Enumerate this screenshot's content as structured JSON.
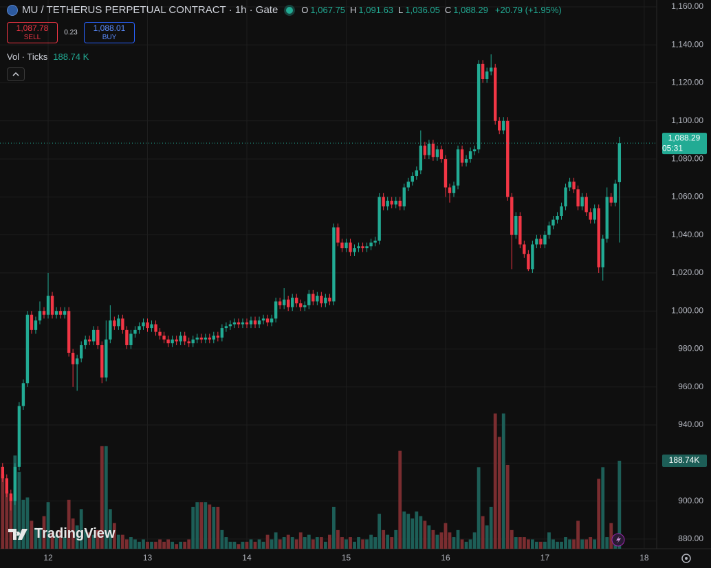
{
  "header": {
    "symbol": "MU / TETHERUS PERPETUAL CONTRACT · 1h · Gate",
    "ohlc": [
      {
        "key": "O",
        "value": "1,067.75"
      },
      {
        "key": "H",
        "value": "1,091.63"
      },
      {
        "key": "L",
        "value": "1,036.05"
      },
      {
        "key": "C",
        "value": "1,088.29"
      }
    ],
    "change": "+20.79 (+1.95%)",
    "sell_price": "1,087.78",
    "sell": "SELL",
    "spread": "0.23",
    "buy_price": "1,088.01",
    "buy": "BUY",
    "volume_title": "Vol · Ticks",
    "volume_value": "188.74 K",
    "brand": "TradingView"
  },
  "chart_data": {
    "type": "candlestick",
    "up_color": "#22ab94",
    "down_color": "#f23645",
    "volume_up_color": "#1d5e57",
    "volume_down_color": "#7a2d30",
    "grid": true,
    "xlim": [
      -0.63,
      158
    ],
    "xticks": [
      {
        "value": 11,
        "label": "12"
      },
      {
        "value": 35,
        "label": "13"
      },
      {
        "value": 59,
        "label": "14"
      },
      {
        "value": 83,
        "label": "15"
      },
      {
        "value": 107,
        "label": "16"
      },
      {
        "value": 131,
        "label": "17"
      },
      {
        "value": 155,
        "label": "18"
      }
    ],
    "ylim": [
      874.9,
      1163.6
    ],
    "yticks": [
      {
        "value": 880,
        "label": "880.00"
      },
      {
        "value": 900,
        "label": "900.00"
      },
      {
        "value": 920,
        "label": "920.00"
      },
      {
        "value": 940,
        "label": "940.00"
      },
      {
        "value": 960,
        "label": "960.00"
      },
      {
        "value": 980,
        "label": "980.00"
      },
      {
        "value": 1000,
        "label": "1,000.00"
      },
      {
        "value": 1020,
        "label": "1,020.00"
      },
      {
        "value": 1040,
        "label": "1,040.00"
      },
      {
        "value": 1060,
        "label": "1,060.00"
      },
      {
        "value": 1080,
        "label": "1,080.00"
      },
      {
        "value": 1100,
        "label": "1,100.00"
      },
      {
        "value": 1120,
        "label": "1,120.00"
      },
      {
        "value": 1140,
        "label": "1,140.00"
      },
      {
        "value": 1160,
        "label": "1,160.00"
      }
    ],
    "open": [
      918,
      912,
      904,
      900,
      918,
      950,
      962,
      998,
      990,
      995,
      1000,
      998,
      1008,
      998,
      1000,
      998,
      1000,
      978,
      972,
      975,
      982,
      985,
      984,
      990,
      982,
      965,
      985,
      995,
      992,
      996,
      990,
      982,
      988,
      990,
      992,
      994,
      991,
      993,
      989,
      987,
      985,
      983,
      985,
      984,
      987,
      984,
      983,
      985,
      986,
      985,
      986,
      985,
      987,
      986,
      991,
      992,
      993,
      994,
      993,
      994,
      993,
      995,
      993,
      995,
      996,
      994,
      996,
      1005,
      1003,
      1006,
      1002,
      1007,
      1004,
      1002,
      1003,
      1009,
      1005,
      1008,
      1004,
      1007,
      1005,
      1044,
      1036,
      1033,
      1036,
      1031,
      1033,
      1034,
      1033,
      1034,
      1036,
      1037,
      1060,
      1055,
      1058,
      1056,
      1058,
      1055,
      1065,
      1068,
      1071,
      1074,
      1087,
      1082,
      1088,
      1081,
      1085,
      1080,
      1065,
      1062,
      1066,
      1085,
      1078,
      1080,
      1084,
      1085,
      1130,
      1122,
      1126,
      1128,
      1100,
      1095,
      1100,
      1060,
      1040,
      1050,
      1035,
      1030,
      1022,
      1035,
      1038,
      1035,
      1040,
      1045,
      1048,
      1050,
      1055,
      1065,
      1068,
      1064,
      1055,
      1060,
      1052,
      1048,
      1054,
      1023,
      1038,
      1060,
      1057,
      1067.75
    ],
    "high": [
      920,
      914,
      906,
      920,
      952,
      964,
      1000,
      1000,
      997,
      1005,
      1002,
      1020,
      1010,
      1002,
      1002,
      1002,
      1002,
      980,
      977,
      984,
      987,
      987,
      992,
      992,
      984,
      995,
      1003,
      997,
      998,
      998,
      992,
      990,
      992,
      994,
      996,
      996,
      995,
      995,
      991,
      989,
      987,
      987,
      987,
      989,
      989,
      986,
      987,
      988,
      988,
      988,
      988,
      989,
      989,
      993,
      994,
      995,
      996,
      996,
      996,
      996,
      997,
      997,
      997,
      998,
      998,
      998,
      1007,
      1007,
      1012,
      1008,
      1009,
      1009,
      1006,
      1005,
      1011,
      1011,
      1010,
      1010,
      1009,
      1009,
      1046,
      1046,
      1038,
      1038,
      1038,
      1035,
      1036,
      1036,
      1036,
      1038,
      1039,
      1062,
      1062,
      1060,
      1060,
      1060,
      1060,
      1067,
      1070,
      1073,
      1076,
      1095,
      1089,
      1090,
      1090,
      1087,
      1087,
      1082,
      1067,
      1068,
      1087,
      1087,
      1082,
      1086,
      1087,
      1132,
      1132,
      1128,
      1135,
      1130,
      1102,
      1102,
      1102,
      1062,
      1052,
      1052,
      1037,
      1032,
      1037,
      1040,
      1040,
      1042,
      1047,
      1050,
      1052,
      1057,
      1067,
      1070,
      1070,
      1066,
      1062,
      1062,
      1054,
      1056,
      1056,
      1040,
      1065,
      1062,
      1069,
      1091.63
    ],
    "low": [
      910,
      902,
      895,
      898,
      916,
      948,
      960,
      988,
      988,
      993,
      996,
      996,
      996,
      996,
      996,
      996,
      976,
      960,
      958,
      973,
      980,
      982,
      982,
      980,
      962,
      963,
      983,
      990,
      990,
      988,
      980,
      980,
      986,
      988,
      990,
      989,
      989,
      987,
      985,
      983,
      981,
      981,
      982,
      982,
      982,
      981,
      981,
      983,
      983,
      983,
      983,
      983,
      984,
      984,
      989,
      990,
      991,
      991,
      991,
      991,
      991,
      991,
      991,
      993,
      992,
      992,
      994,
      1001,
      1001,
      1000,
      1000,
      1002,
      1000,
      1000,
      1001,
      1003,
      1003,
      1002,
      1002,
      1003,
      1003,
      1034,
      1031,
      1031,
      1029,
      1029,
      1031,
      1031,
      1031,
      1032,
      1034,
      1035,
      1053,
      1053,
      1054,
      1054,
      1053,
      1053,
      1063,
      1066,
      1069,
      1072,
      1080,
      1080,
      1079,
      1079,
      1078,
      1060,
      1057,
      1060,
      1064,
      1076,
      1076,
      1078,
      1082,
      1083,
      1120,
      1120,
      1124,
      1098,
      1093,
      1093,
      1058,
      1022,
      1038,
      1033,
      1028,
      1021,
      1020,
      1033,
      1033,
      1033,
      1038,
      1043,
      1046,
      1048,
      1053,
      1063,
      1062,
      1053,
      1053,
      1050,
      1046,
      1046,
      1020,
      1016,
      1036,
      1055,
      1055,
      1036.05
    ],
    "close": [
      912,
      904,
      900,
      918,
      950,
      962,
      998,
      990,
      995,
      1000,
      998,
      1008,
      998,
      1000,
      998,
      1000,
      978,
      972,
      975,
      982,
      985,
      984,
      990,
      982,
      965,
      985,
      995,
      992,
      996,
      990,
      982,
      988,
      990,
      992,
      994,
      991,
      993,
      989,
      987,
      985,
      983,
      985,
      984,
      987,
      984,
      983,
      985,
      986,
      985,
      986,
      985,
      987,
      986,
      991,
      992,
      993,
      994,
      993,
      994,
      993,
      995,
      993,
      995,
      996,
      994,
      996,
      1005,
      1003,
      1006,
      1002,
      1007,
      1004,
      1002,
      1003,
      1009,
      1005,
      1008,
      1004,
      1007,
      1005,
      1044,
      1036,
      1033,
      1036,
      1031,
      1033,
      1034,
      1033,
      1034,
      1036,
      1037,
      1060,
      1055,
      1058,
      1056,
      1058,
      1055,
      1065,
      1068,
      1071,
      1074,
      1087,
      1082,
      1088,
      1081,
      1085,
      1080,
      1065,
      1062,
      1066,
      1085,
      1078,
      1080,
      1084,
      1085,
      1130,
      1122,
      1126,
      1128,
      1100,
      1095,
      1100,
      1060,
      1040,
      1050,
      1035,
      1030,
      1022,
      1035,
      1038,
      1035,
      1040,
      1045,
      1048,
      1050,
      1055,
      1065,
      1068,
      1064,
      1055,
      1060,
      1052,
      1048,
      1054,
      1023,
      1038,
      1060,
      1057,
      1067,
      1088.29
    ],
    "volume": [
      160,
      125,
      110,
      200,
      165,
      105,
      110,
      60,
      45,
      45,
      70,
      100,
      35,
      30,
      40,
      25,
      105,
      65,
      50,
      85,
      40,
      35,
      30,
      40,
      220,
      220,
      85,
      55,
      30,
      30,
      20,
      25,
      20,
      15,
      20,
      15,
      15,
      15,
      20,
      15,
      20,
      15,
      10,
      15,
      15,
      20,
      90,
      100,
      100,
      100,
      95,
      90,
      90,
      40,
      25,
      15,
      15,
      10,
      15,
      15,
      20,
      15,
      20,
      15,
      30,
      20,
      35,
      20,
      25,
      30,
      25,
      20,
      35,
      25,
      30,
      20,
      25,
      25,
      15,
      30,
      90,
      40,
      25,
      20,
      25,
      15,
      25,
      20,
      20,
      30,
      25,
      75,
      40,
      30,
      25,
      40,
      210,
      80,
      75,
      65,
      80,
      70,
      60,
      50,
      40,
      30,
      35,
      55,
      35,
      25,
      40,
      20,
      15,
      20,
      35,
      175,
      70,
      50,
      90,
      290,
      240,
      290,
      180,
      40,
      25,
      25,
      25,
      20,
      20,
      15,
      15,
      15,
      35,
      20,
      15,
      15,
      25,
      20,
      20,
      60,
      20,
      20,
      25,
      20,
      150,
      175,
      25,
      55,
      25,
      188.74
    ],
    "last_label": "1,088.29",
    "countdown": "05:31",
    "volume_label": "188.74K"
  }
}
